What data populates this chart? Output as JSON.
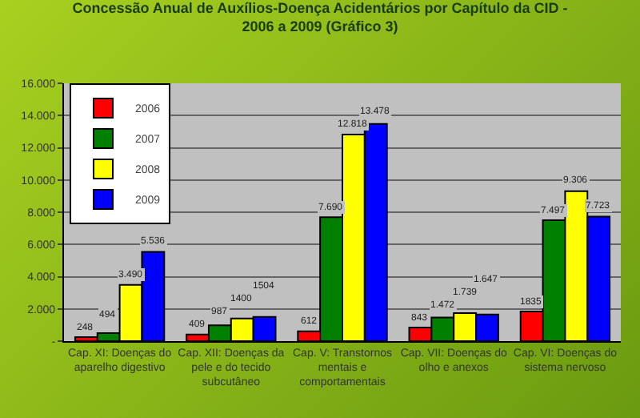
{
  "chart_data": {
    "type": "bar",
    "title": "Concessão Anual de Auxílios-Doença Acidentários por Capítulo da CID - 2006 a 2009 (Gráfico 3)",
    "categories": [
      "Cap. XI: Doenças do aparelho digestivo",
      "Cap. XII: Doenças da pele e do tecido subcutâneo",
      "Cap. V: Transtornos mentais e comportamentais",
      "Cap. VII: Doenças do olho e anexos",
      "Cap. VI: Doenças do sistema nervoso"
    ],
    "series": [
      {
        "name": "2006",
        "color": "#ff0000",
        "values": [
          248,
          409,
          612,
          843,
          1835
        ],
        "value_labels": [
          "248",
          "409",
          "612",
          "843",
          "1835"
        ]
      },
      {
        "name": "2007",
        "color": "#008000",
        "values": [
          494,
          987,
          7690,
          1472,
          7497
        ],
        "value_labels": [
          "494",
          "987",
          "7.690",
          "1.472",
          "7.497"
        ]
      },
      {
        "name": "2008",
        "color": "#ffff00",
        "values": [
          3490,
          1400,
          12818,
          1739,
          9306
        ],
        "value_labels": [
          "3.490",
          "1400",
          "12.818",
          "1.739",
          "9.306"
        ]
      },
      {
        "name": "2009",
        "color": "#0000ff",
        "values": [
          5536,
          1504,
          13478,
          1647,
          7723
        ],
        "value_labels": [
          "5.536",
          "1504",
          "13.478",
          "1.647",
          "7.723"
        ]
      }
    ],
    "ylim": [
      0,
      16000
    ],
    "yticks": [
      {
        "value": 0,
        "label": "-"
      },
      {
        "value": 2000,
        "label": "2.000"
      },
      {
        "value": 4000,
        "label": "4.000"
      },
      {
        "value": 6000,
        "label": "6.000"
      },
      {
        "value": 8000,
        "label": "8.000"
      },
      {
        "value": 10000,
        "label": "10.000"
      },
      {
        "value": 12000,
        "label": "12.000"
      },
      {
        "value": 14000,
        "label": "14.000"
      },
      {
        "value": 16000,
        "label": "16.000"
      }
    ],
    "grid": "y",
    "legend": "top left"
  }
}
